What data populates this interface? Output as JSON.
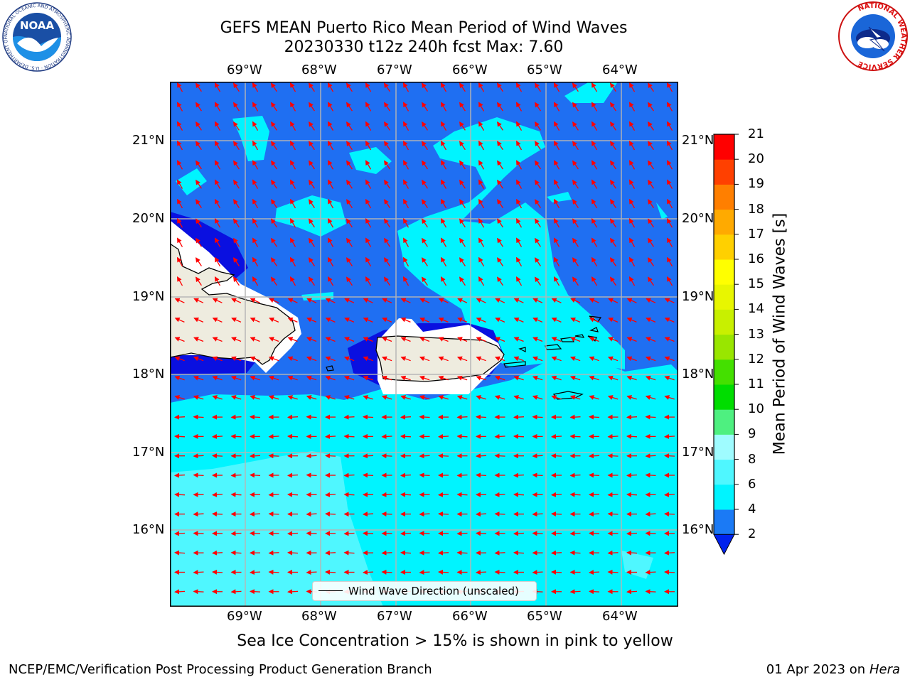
{
  "title_line1": "GEFS MEAN Puerto Rico Mean Period of Wind Waves",
  "title_line2": "20230330 t12z 240h fcst   Max: 7.60",
  "lon_ticks": [
    "69°W",
    "68°W",
    "67°W",
    "66°W",
    "65°W",
    "64°W"
  ],
  "lat_ticks": [
    "21°N",
    "20°N",
    "19°N",
    "18°N",
    "17°N",
    "16°N"
  ],
  "legend_label": "Wind Wave Direction (unscaled)",
  "colorbar": {
    "label": "Mean Period of Wind Waves [s]",
    "ticks": [
      "2",
      "4",
      "6",
      "8",
      "9",
      "10",
      "11",
      "12",
      "13",
      "14",
      "15",
      "16",
      "17",
      "18",
      "19",
      "20",
      "21"
    ],
    "colors": [
      "#0022ee",
      "#1b7af5",
      "#00f4ff",
      "#4ff7ff",
      "#9ffcff",
      "#4ef080",
      "#00dd00",
      "#44e000",
      "#99e600",
      "#c8f000",
      "#e8f600",
      "#ffff00",
      "#ffd000",
      "#ffaa00",
      "#ff7f00",
      "#ff4000",
      "#ff0000"
    ]
  },
  "subtitle": "Sea Ice Concentration > 15% is shown in pink to yellow",
  "footer_left": "NCEP/EMC/Verification Post Processing Product Generation Branch",
  "footer_right_prefix": "01 Apr 2023 on ",
  "footer_right_machine": "Hera",
  "logos": {
    "noaa_text": "NOAA",
    "noaa_ring_text": "NATIONAL OCEANIC AND ATMOSPHERIC ADMINISTRATION · U.S. DEPARTMENT OF COMMERCE",
    "nws_ring_text": "NATIONAL WEATHER SERVICE"
  },
  "map_colors": {
    "deep_blue": "#0a10e0",
    "blue": "#1f6ff2",
    "cyan": "#00f4ff",
    "light_cyan": "#4ff7ff",
    "land": "#eeecdf",
    "arrow": "#ff0000"
  }
}
